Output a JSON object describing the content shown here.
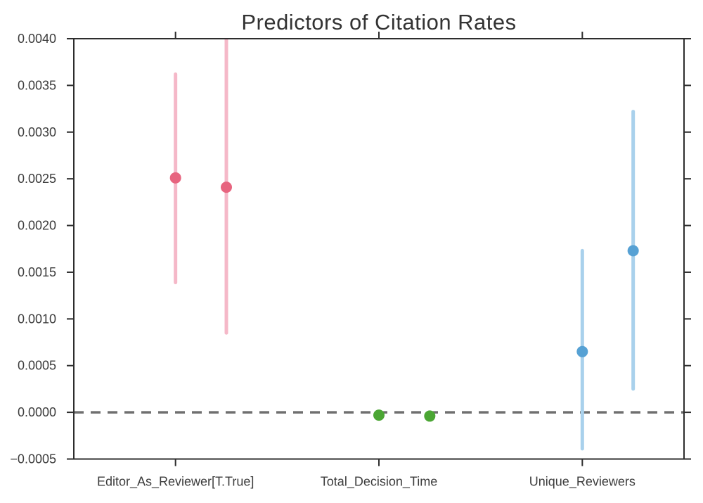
{
  "figure": {
    "background": "#ffffff",
    "axis_color": "#2d2d2d",
    "tick_label_color": "#3c3c3c",
    "title_color": "#333333"
  },
  "chart_data": {
    "type": "scatter",
    "subtype": "point-estimates-with-error-bars",
    "title": "Predictors of Citation Rates",
    "xlabel": "",
    "ylabel": "",
    "xlim": [
      -0.5,
      2.5
    ],
    "ylim": [
      -0.0005,
      0.004
    ],
    "grid": false,
    "legend": null,
    "yticks": [
      0.004,
      0.0035,
      0.003,
      0.0025,
      0.002,
      0.0015,
      0.001,
      0.0005,
      0.0,
      -0.0005
    ],
    "ytick_labels": [
      "0.0040",
      "0.0035",
      "0.0030",
      "0.0025",
      "0.0020",
      "0.0015",
      "0.0010",
      "0.0005",
      "0.0000",
      "−0.0005"
    ],
    "categories": [
      "Editor_As_Reviewer[T.True]",
      "Total_Decision_Time",
      "Unique_Reviewers"
    ],
    "category_positions": [
      0,
      1,
      2
    ],
    "pair_offset": 0.25,
    "zero_line": {
      "y": 0.0,
      "style": "dashed",
      "color": "#6f6f6f"
    },
    "groups": [
      {
        "category": "Editor_As_Reviewer[T.True]",
        "x": 0,
        "marker_color": "#e7647f",
        "bar_color": "#f5b8c8",
        "points": [
          {
            "x_offset": 0.0,
            "estimate": 0.00251,
            "ci_low": 0.00139,
            "ci_high": 0.00362
          },
          {
            "x_offset": 0.25,
            "estimate": 0.00241,
            "ci_low": 0.00085,
            "ci_high": 0.00401
          }
        ]
      },
      {
        "category": "Total_Decision_Time",
        "x": 1,
        "marker_color": "#4ba634",
        "bar_color": "#aed6a0",
        "points": [
          {
            "x_offset": 0.0,
            "estimate": -3e-05,
            "ci_low": -5e-05,
            "ci_high": -1e-05
          },
          {
            "x_offset": 0.25,
            "estimate": -4e-05,
            "ci_low": -6e-05,
            "ci_high": -2e-05
          }
        ]
      },
      {
        "category": "Unique_Reviewers",
        "x": 2,
        "marker_color": "#56a1d4",
        "bar_color": "#a9d1ec",
        "points": [
          {
            "x_offset": 0.0,
            "estimate": 0.00065,
            "ci_low": -0.00039,
            "ci_high": 0.00173
          },
          {
            "x_offset": 0.25,
            "estimate": 0.00173,
            "ci_low": 0.00025,
            "ci_high": 0.00322
          }
        ]
      }
    ]
  }
}
